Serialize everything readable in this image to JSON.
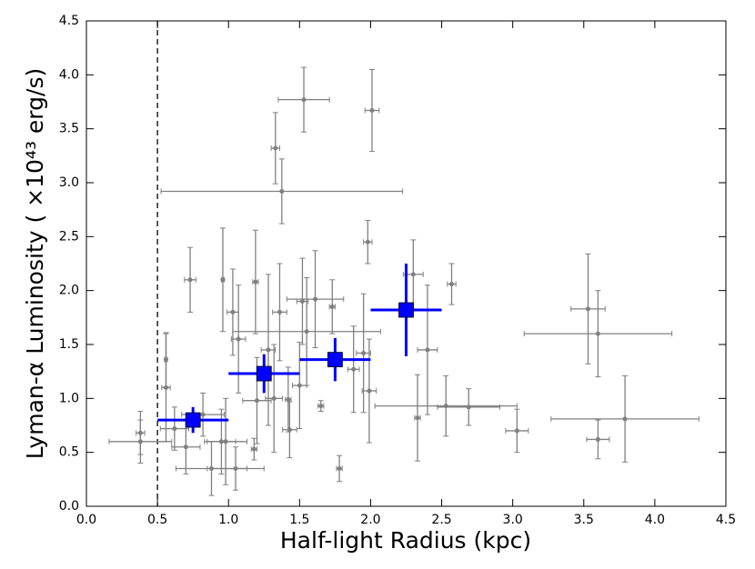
{
  "chart_data": {
    "type": "scatter",
    "x_label": "Half-light Radius (kpc)",
    "y_label": "Lyman-α Luminosity ( ×10⁴³ erg/s)",
    "xlim": [
      0,
      4.5
    ],
    "ylim": [
      0,
      4.5
    ],
    "xticks": [
      {
        "value": 0,
        "label": "0.0"
      },
      {
        "value": 0.5,
        "label": "0.5"
      },
      {
        "value": 1,
        "label": "1.0"
      },
      {
        "value": 1.5,
        "label": "1.5"
      },
      {
        "value": 2,
        "label": "2.0"
      },
      {
        "value": 2.5,
        "label": "2.5"
      },
      {
        "value": 3,
        "label": "3.0"
      },
      {
        "value": 3.5,
        "label": "3.5"
      },
      {
        "value": 4,
        "label": "4.0"
      },
      {
        "value": 4.5,
        "label": "4.5"
      }
    ],
    "yticks": [
      {
        "value": 0,
        "label": "0.0"
      },
      {
        "value": 0.5,
        "label": "0.5"
      },
      {
        "value": 1,
        "label": "1.0"
      },
      {
        "value": 1.5,
        "label": "1.5"
      },
      {
        "value": 2,
        "label": "2.0"
      },
      {
        "value": 2.5,
        "label": "2.5"
      },
      {
        "value": 3,
        "label": "3.0"
      },
      {
        "value": 3.5,
        "label": "3.5"
      },
      {
        "value": 4,
        "label": "4.0"
      },
      {
        "value": 4.5,
        "label": "4.5"
      }
    ],
    "vline": 0.5,
    "series": [
      {
        "color": "#808080",
        "marker": "circle",
        "x": [
          1.53,
          2.01,
          1.33,
          1.375,
          1.98,
          2.3,
          2.57,
          0.73,
          0.96,
          1.19,
          1.03,
          1.61,
          1.52,
          3.53,
          3.6,
          1.28,
          1.07,
          1.36,
          1.55,
          2.4,
          1.95,
          1.88,
          0.56,
          0.56,
          1.5,
          1.32,
          1.99,
          2.53,
          2.69,
          2.33,
          3.03,
          3.79,
          3.6,
          1.78,
          1.43,
          1.65,
          0.38,
          0.38,
          0.7,
          0.88,
          1.05,
          0.95,
          1.18,
          0.82,
          0.98,
          1.2,
          0.62,
          1.73,
          1.42
        ],
        "values": [
          3.77,
          3.67,
          3.32,
          2.92,
          2.45,
          2.15,
          2.06,
          2.1,
          2.1,
          2.08,
          1.8,
          1.92,
          1.9,
          1.83,
          1.6,
          1.45,
          1.55,
          1.8,
          1.62,
          1.45,
          1.42,
          1.27,
          1.36,
          1.1,
          1.12,
          1.0,
          1.07,
          0.93,
          0.92,
          0.82,
          0.7,
          0.81,
          0.62,
          0.35,
          0.71,
          0.93,
          0.6,
          0.68,
          0.55,
          0.35,
          0.35,
          0.6,
          0.53,
          0.85,
          0.6,
          0.98,
          0.72,
          1.85,
          0.99
        ],
        "xerr": [
          0.18,
          0.05,
          0.03,
          0.85,
          0.03,
          0.07,
          0.03,
          0.04,
          0.01,
          0.02,
          0.04,
          0.2,
          0.04,
          0.12,
          0.52,
          0.05,
          0.05,
          0.05,
          0.52,
          0.07,
          0.05,
          0.04,
          0.01,
          0.03,
          0.05,
          0.06,
          0.05,
          0.5,
          0.22,
          0.02,
          0.08,
          0.52,
          0.08,
          0.02,
          0.05,
          0.02,
          0.22,
          0.03,
          0.1,
          0.25,
          0.2,
          0.1,
          0.02,
          0.15,
          0.15,
          0.1,
          0.1,
          0.02,
          0.02
        ],
        "yerr": [
          0.3,
          0.38,
          0.33,
          0.3,
          0.2,
          0.32,
          0.19,
          0.3,
          0.48,
          0.48,
          0.4,
          0.45,
          0.4,
          0.51,
          0.4,
          0.7,
          0.5,
          0.45,
          0.5,
          0.6,
          0.55,
          0.4,
          0.25,
          0.5,
          0.4,
          0.5,
          0.48,
          0.28,
          0.17,
          0.4,
          0.2,
          0.4,
          0.18,
          0.12,
          0.26,
          0.05,
          0.2,
          0.2,
          0.25,
          0.25,
          0.2,
          0.3,
          0.1,
          0.2,
          0.4,
          0.4,
          0.2,
          0.25,
          0.3
        ]
      },
      {
        "color": "#0000ff",
        "marker": "square",
        "x": [
          0.75,
          1.25,
          1.75,
          2.25
        ],
        "values": [
          0.8,
          1.23,
          1.36,
          1.82
        ],
        "xerr": [
          0.25,
          0.25,
          0.25,
          0.25
        ],
        "yerr": [
          0.12,
          0.18,
          0.2,
          0.43
        ]
      }
    ]
  }
}
